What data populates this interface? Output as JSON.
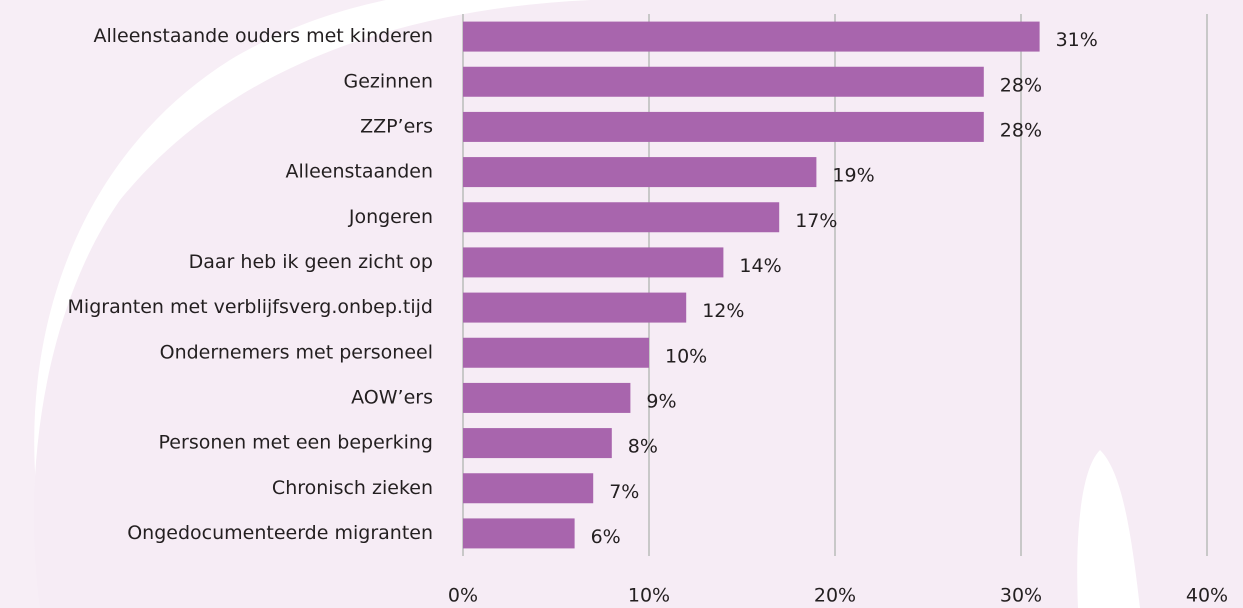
{
  "chart_data": {
    "type": "barh",
    "categories": [
      "Alleenstaande ouders met kinderen",
      "Gezinnen",
      "ZZP’ers",
      "Alleenstaanden",
      "Jongeren",
      "Daar heb ik geen zicht op",
      "Migranten met verblijfsverg.onbep.tijd",
      "Ondernemers met personeel",
      "AOW’ers",
      "Personen met een beperking",
      "Chronisch zieken",
      "Ongedocumenteerde migranten"
    ],
    "values": [
      31,
      28,
      28,
      19,
      17,
      14,
      12,
      10,
      9,
      8,
      7,
      6
    ],
    "value_labels": [
      "31%",
      "28%",
      "28%",
      "19%",
      "17%",
      "14%",
      "12%",
      "10%",
      "9%",
      "8%",
      "7%",
      "6%"
    ],
    "color": "#a865ad",
    "xlim": [
      0,
      40
    ],
    "xticks": [
      {
        "value": 0,
        "label": "0%"
      },
      {
        "value": 10,
        "label": "10%"
      },
      {
        "value": 20,
        "label": "20%"
      },
      {
        "value": 30,
        "label": "30%"
      },
      {
        "value": 40,
        "label": "40%"
      }
    ],
    "grid": true
  }
}
